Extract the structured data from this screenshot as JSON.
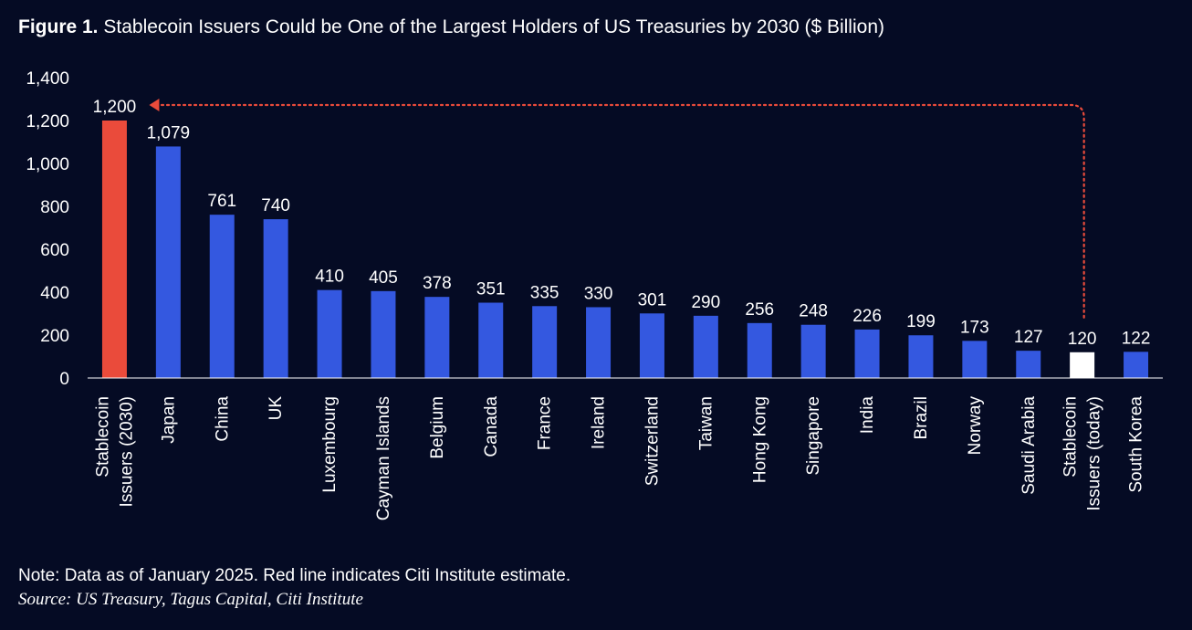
{
  "title_prefix": "Figure 1.",
  "title": "Stablecoin Issuers Could be One of the Largest Holders of US Treasuries by 2030 ($ Billion)",
  "note": "Note: Data as of January 2025. Red line indicates Citi Institute estimate.",
  "source": "Source: US Treasury, Tagus Capital, Citi Institute",
  "colors": {
    "background": "#050b24",
    "bar": "#3458e0",
    "highlight": "#ea4b3b",
    "today": "#ffffff",
    "axis": "#ffffff",
    "arrow": "#ea4b3b"
  },
  "chart_data": {
    "type": "bar",
    "title": "Stablecoin Issuers Could be One of the Largest Holders of US Treasuries by 2030 ($ Billion)",
    "xlabel": "",
    "ylabel": "",
    "ylim": [
      0,
      1400
    ],
    "yticks": [
      0,
      200,
      400,
      600,
      800,
      1000,
      1200,
      1400
    ],
    "ytick_labels": [
      "0",
      "200",
      "400",
      "600",
      "800",
      "1,000",
      "1,200",
      "1,400"
    ],
    "grid": false,
    "legend": "none",
    "categories": [
      [
        "Stablecoin",
        "Issuers (2030)"
      ],
      [
        "Japan"
      ],
      [
        "China"
      ],
      [
        "UK"
      ],
      [
        "Luxembourg"
      ],
      [
        "Cayman Islands"
      ],
      [
        "Belgium"
      ],
      [
        "Canada"
      ],
      [
        "France"
      ],
      [
        "Ireland"
      ],
      [
        "Switzerland"
      ],
      [
        "Taiwan"
      ],
      [
        "Hong Kong"
      ],
      [
        "Singapore"
      ],
      [
        "India"
      ],
      [
        "Brazil"
      ],
      [
        "Norway"
      ],
      [
        "Saudi Arabia"
      ],
      [
        "Stablecoin",
        "Issuers (today)"
      ],
      [
        "South Korea"
      ]
    ],
    "values": [
      1200,
      1079,
      761,
      740,
      410,
      405,
      378,
      351,
      335,
      330,
      301,
      290,
      256,
      248,
      226,
      199,
      173,
      127,
      120,
      122
    ],
    "value_labels": [
      "1,200",
      "1,079",
      "761",
      "740",
      "410",
      "405",
      "378",
      "351",
      "335",
      "330",
      "301",
      "290",
      "256",
      "248",
      "226",
      "199",
      "173",
      "127",
      "120",
      "122"
    ],
    "highlight_index": 0,
    "today_index": 18,
    "annotation": {
      "type": "dotted-arrow",
      "from_index": 18,
      "to_index": 0,
      "color": "#ea4b3b"
    }
  }
}
